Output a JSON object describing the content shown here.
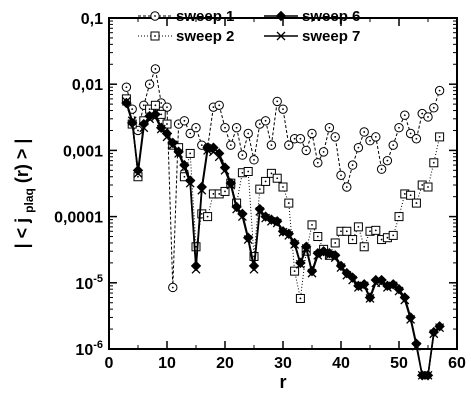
{
  "chart_data": {
    "type": "line",
    "xlabel": "r",
    "ylabel_parts": {
      "prefix": "| < j",
      "subscript": "plaq",
      "suffix": "(r) > |"
    },
    "xlim": [
      0,
      60
    ],
    "ylim": [
      1e-06,
      0.1
    ],
    "yscale": "log",
    "xticks": [
      0,
      10,
      20,
      30,
      40,
      50,
      60
    ],
    "xtick_labels": [
      "0",
      "10",
      "20",
      "30",
      "40",
      "50",
      "60"
    ],
    "yticks": [
      1e-06,
      1e-05,
      0.0001,
      0.001,
      0.01,
      0.1
    ],
    "ytick_labels": [
      {
        "base": "10",
        "exp": "-6"
      },
      {
        "base": "10",
        "exp": "-5"
      },
      {
        "text": "0,0001"
      },
      {
        "text": "0,001"
      },
      {
        "text": "0,01"
      },
      {
        "text": "0,1"
      }
    ],
    "legend_position": "top",
    "series": [
      {
        "name": "sweep 1",
        "marker": "circle-dot",
        "line": "dashed",
        "x": [
          3,
          4,
          5,
          6,
          7,
          8,
          9,
          10,
          11,
          12,
          13,
          14,
          15,
          16,
          17,
          18,
          19,
          20,
          21,
          22,
          23,
          24,
          25,
          26,
          27,
          28,
          29,
          30,
          31,
          32,
          33,
          34,
          35,
          36,
          37,
          38,
          39,
          40,
          41,
          42,
          43,
          44,
          45,
          46,
          47,
          48,
          49,
          50,
          51,
          52,
          53,
          54,
          55,
          56,
          57
        ],
        "y": [
          0.009,
          0.0042,
          0.002,
          0.0048,
          0.01,
          0.017,
          0.0052,
          0.0045,
          8.5e-06,
          0.0025,
          0.0028,
          0.0018,
          0.0022,
          0.0012,
          0.0011,
          0.0045,
          0.0048,
          0.0022,
          0.0012,
          0.0022,
          0.00085,
          0.0018,
          0.00072,
          0.0025,
          0.0028,
          0.0012,
          0.0055,
          0.0042,
          0.0012,
          0.0015,
          0.0015,
          0.001,
          0.0018,
          0.00065,
          0.00095,
          0.0022,
          0.0016,
          0.00042,
          0.00028,
          0.0006,
          0.0011,
          0.0019,
          0.0014,
          0.0016,
          0.00052,
          0.0007,
          0.0012,
          0.0022,
          0.0034,
          0.0018,
          0.0015,
          0.0036,
          0.0032,
          0.0044,
          0.008
        ]
      },
      {
        "name": "sweep 2",
        "marker": "square-dot",
        "line": "dotted",
        "x": [
          3,
          4,
          5,
          6,
          7,
          8,
          9,
          10,
          11,
          12,
          13,
          14,
          15,
          16,
          17,
          18,
          19,
          20,
          21,
          22,
          23,
          24,
          25,
          26,
          27,
          28,
          29,
          30,
          31,
          32,
          33,
          34,
          35,
          36,
          37,
          38,
          39,
          40,
          41,
          42,
          43,
          44,
          45,
          46,
          47,
          48,
          49,
          50,
          51,
          52,
          53,
          54,
          55,
          56,
          57
        ],
        "y": [
          0.006,
          0.0025,
          0.0004,
          0.0028,
          0.0042,
          0.0048,
          0.0035,
          0.0025,
          0.0012,
          0.0011,
          0.0004,
          0.0009,
          3.5e-05,
          0.00011,
          0.0001,
          0.00022,
          0.00022,
          0.00024,
          0.00032,
          0.00016,
          0.00046,
          0.00048,
          2.5e-05,
          0.00026,
          0.00034,
          0.00045,
          0.00038,
          0.00028,
          0.00016,
          1.5e-05,
          5.8e-06,
          3e-05,
          7.5e-05,
          5e-05,
          3.2e-05,
          2.6e-05,
          4e-05,
          6e-05,
          6e-05,
          4.5e-05,
          7e-05,
          3.5e-05,
          6e-05,
          6.2e-05,
          4.5e-05,
          4.8e-05,
          5.2e-05,
          0.0001,
          0.00022,
          0.00021,
          0.00016,
          0.0003,
          0.00028,
          0.00065,
          0.0016
        ]
      },
      {
        "name": "sweep 6",
        "marker": "diamond",
        "line": "solid",
        "x": [
          3,
          4,
          5,
          6,
          7,
          8,
          9,
          10,
          11,
          12,
          13,
          14,
          15,
          16,
          17,
          18,
          19,
          20,
          21,
          22,
          23,
          24,
          25,
          26,
          27,
          28,
          29,
          30,
          31,
          32,
          33,
          34,
          35,
          36,
          37,
          38,
          39,
          40,
          41,
          42,
          43,
          44,
          45,
          46,
          47,
          48,
          49,
          50,
          51,
          52,
          53,
          54,
          55,
          56,
          57
        ],
        "y": [
          0.0052,
          0.0026,
          0.0005,
          0.0025,
          0.0033,
          0.0035,
          0.0022,
          0.0018,
          0.0013,
          0.00095,
          0.0006,
          0.00035,
          1.8e-05,
          0.00028,
          0.0011,
          0.0011,
          0.0009,
          0.00055,
          0.00032,
          0.00014,
          0.00011,
          4.8e-05,
          1.8e-05,
          0.00013,
          0.0001,
          9e-05,
          8.5e-05,
          6e-05,
          5.5e-05,
          4e-05,
          2e-05,
          3.5e-05,
          1.5e-05,
          2.8e-05,
          3e-05,
          2.8e-05,
          2.6e-05,
          1.8e-05,
          1.4e-05,
          1.2e-05,
          9e-06,
          9.5e-06,
          6e-06,
          1.1e-05,
          1.1e-05,
          9e-06,
          9.5e-06,
          8e-06,
          6e-06,
          3e-06,
          1.2e-06,
          4e-07,
          4e-07,
          1.8e-06,
          2.2e-06
        ]
      },
      {
        "name": "sweep 7",
        "marker": "x",
        "line": "solid",
        "x": [
          3,
          4,
          5,
          6,
          7,
          8,
          9,
          10,
          11,
          12,
          13,
          14,
          15,
          16,
          17,
          18,
          19,
          20,
          21,
          22,
          23,
          24,
          25,
          26,
          27,
          28,
          29,
          30,
          31,
          32,
          33,
          34,
          35,
          36,
          37,
          38,
          39,
          40,
          41,
          42,
          43,
          44,
          45,
          46,
          47,
          48,
          49,
          50,
          51,
          52,
          53,
          54,
          55,
          56,
          57
        ],
        "y": [
          0.0055,
          0.0028,
          0.00045,
          0.0022,
          0.003,
          0.0032,
          0.0021,
          0.0016,
          0.0012,
          0.0009,
          0.00055,
          0.00032,
          1.6e-05,
          0.00025,
          0.001,
          0.00095,
          0.0008,
          0.0005,
          0.0003,
          0.00013,
          0.0001,
          4.5e-05,
          1.6e-05,
          0.00012,
          9.5e-05,
          8.5e-05,
          8e-05,
          5.8e-05,
          5.2e-05,
          3.8e-05,
          1.9e-05,
          3.3e-05,
          1.4e-05,
          2.6e-05,
          2.8e-05,
          2.6e-05,
          2.4e-05,
          1.7e-05,
          1.3e-05,
          1.1e-05,
          8.5e-06,
          9e-06,
          5.8e-06,
          1e-05,
          1e-05,
          8.5e-06,
          9e-06,
          7.5e-06,
          5.5e-06,
          2.8e-06,
          1.1e-06,
          4e-07,
          4e-07,
          1.7e-06,
          2.1e-06
        ]
      }
    ]
  }
}
